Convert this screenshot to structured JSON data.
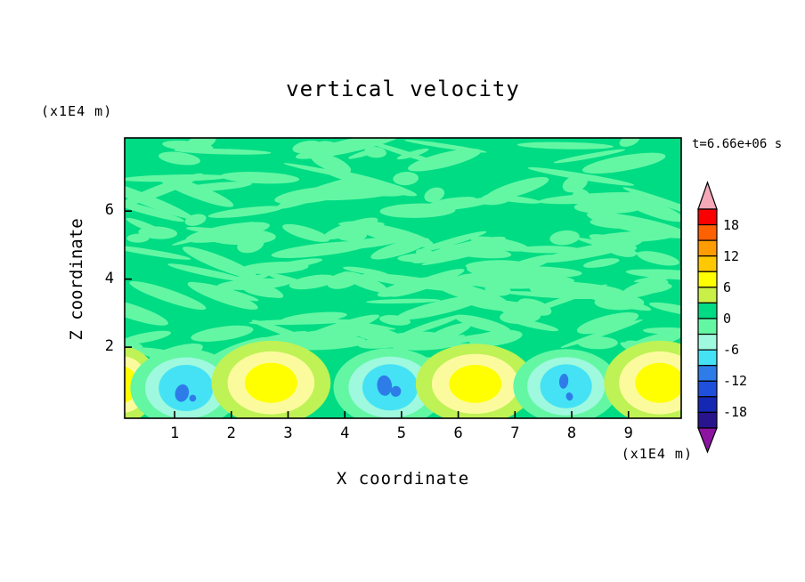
{
  "title": "vertical velocity",
  "timestamp": "t=6.66e+06 s",
  "x_axis": {
    "label": "X coordinate",
    "units": "(x1E4 m)"
  },
  "y_axis": {
    "label": "Z coordinate",
    "units": "(x1E4 m)"
  },
  "colorbar": {
    "labels": [
      "18",
      "12",
      "6",
      "0",
      "-6",
      "-12",
      "-18"
    ],
    "boundaries": [
      21,
      18,
      15,
      12,
      9,
      6,
      3,
      0,
      -3,
      -6,
      -9,
      -12,
      -15,
      -18,
      -21
    ],
    "colors_top_to_bottom": [
      "#FA0000",
      "#FF6000",
      "#FF9C00",
      "#FFC800",
      "#FFFF00",
      "#C8F046",
      "#00DC84",
      "#63F7A4",
      "#9FF9DE",
      "#45E2F5",
      "#2E7CE8",
      "#1E50DC",
      "#1428B4",
      "#28148C"
    ],
    "over_arrow_color": "#F4A8B8",
    "under_arrow_color": "#8C14A0"
  },
  "chart_data": {
    "type": "heatmap",
    "title": "vertical velocity",
    "time_label": "t=6.66e+06 s",
    "xlabel": "X coordinate",
    "xunits": "(x1E4 m)",
    "ylabel": "Z coordinate",
    "yunits": "(x1E4 m)",
    "xlim": [
      0.12,
      9.93
    ],
    "ylim": [
      -0.09,
      8.15
    ],
    "xticks": [
      1,
      2,
      3,
      4,
      5,
      6,
      7,
      8,
      9
    ],
    "yticks": [
      2,
      4,
      6
    ],
    "contour_interval": 3,
    "levels_labeled": [
      18,
      12,
      6,
      0,
      -6,
      -12,
      -18
    ],
    "field_summary": "Vertical velocity is near zero (0 to +3 band, green) over most of the domain, with mottled patches of -3 to 0 (light green). A row of alternating convective cells sits along the bottom boundary below z ~ 1.5: updrafts peaking near +9 (yellow cores) and downdrafts peaking near -12 (blue cores inside cyan regions).",
    "palette": {
      "background": "#00DC84",
      "mottle": "#63F7A4",
      "updraft": [
        "#BEF255",
        "#FBFB9E",
        "#FFFF00"
      ],
      "downdraft": [
        "#63F7A4",
        "#9FF9DE",
        "#45E2F5"
      ],
      "core": "#2E7CE8"
    },
    "cells": [
      {
        "kind": "updraft",
        "x": 0.08,
        "z": 0.9,
        "peak": 9,
        "sx": 0.62,
        "sz": 0.95
      },
      {
        "kind": "downdraft",
        "x": 1.2,
        "z": 0.8,
        "peak": -12,
        "sx": 1.0,
        "sz": 1.0,
        "cores": [
          {
            "dx": -0.07,
            "dz": -0.15,
            "rx": 0.12,
            "rz": 0.26,
            "rot": 14
          },
          {
            "dx": 0.12,
            "dz": -0.3,
            "rx": 0.06,
            "rz": 0.1,
            "rot": -8
          }
        ]
      },
      {
        "kind": "updraft",
        "x": 2.7,
        "z": 0.95,
        "peak": 9,
        "sx": 1.05,
        "sz": 1.05
      },
      {
        "kind": "downdraft",
        "x": 4.8,
        "z": 0.82,
        "peak": -12,
        "sx": 1.02,
        "sz": 1.0,
        "cores": [
          {
            "dx": -0.1,
            "dz": 0.05,
            "rx": 0.13,
            "rz": 0.3,
            "rot": -6
          },
          {
            "dx": 0.1,
            "dz": -0.12,
            "rx": 0.09,
            "rz": 0.16,
            "rot": 18
          }
        ]
      },
      {
        "kind": "updraft",
        "x": 6.3,
        "z": 0.92,
        "peak": 9,
        "sx": 1.05,
        "sz": 1.0
      },
      {
        "kind": "downdraft",
        "x": 7.9,
        "z": 0.85,
        "peak": -12,
        "sx": 0.95,
        "sz": 0.95,
        "cores": [
          {
            "dx": -0.04,
            "dz": 0.15,
            "rx": 0.08,
            "rz": 0.22,
            "rot": 6
          },
          {
            "dx": 0.06,
            "dz": -0.3,
            "rx": 0.06,
            "rz": 0.12,
            "rot": -14
          }
        ]
      },
      {
        "kind": "updraft",
        "x": 9.55,
        "z": 0.95,
        "peak": 9,
        "sx": 0.98,
        "sz": 1.05
      }
    ]
  }
}
